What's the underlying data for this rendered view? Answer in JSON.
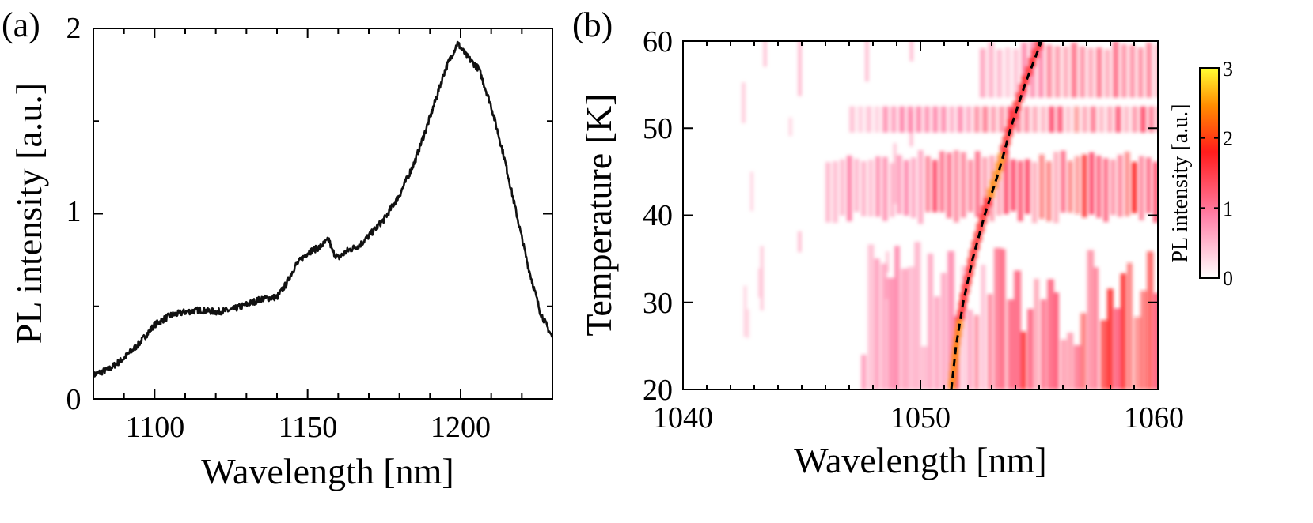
{
  "chart_data": [
    {
      "type": "line",
      "panel_label": "(a)",
      "xlabel": "Wavelength [nm]",
      "ylabel": "PL intensity [a.u.]",
      "xlim": [
        1080,
        1230
      ],
      "ylim": [
        0,
        2
      ],
      "xticks": [
        1100,
        1150,
        1200
      ],
      "xtick_labels": [
        "1100",
        "1150",
        "1200"
      ],
      "yticks": [
        0,
        1,
        2
      ],
      "ytick_labels": [
        "0",
        "1",
        "2"
      ],
      "grid": false,
      "series": [
        {
          "name": "PL spectrum",
          "color": "#111111",
          "x": [
            1080,
            1085,
            1090,
            1095,
            1100,
            1105,
            1110,
            1115,
            1120,
            1125,
            1130,
            1135,
            1140,
            1143,
            1146,
            1150,
            1154,
            1157,
            1158,
            1160,
            1163,
            1167,
            1170,
            1175,
            1180,
            1185,
            1190,
            1195,
            1199,
            1202,
            1206,
            1210,
            1214,
            1218,
            1222,
            1226,
            1230
          ],
          "y": [
            0.13,
            0.16,
            0.22,
            0.3,
            0.4,
            0.45,
            0.47,
            0.48,
            0.47,
            0.48,
            0.51,
            0.54,
            0.55,
            0.62,
            0.72,
            0.79,
            0.82,
            0.86,
            0.8,
            0.76,
            0.8,
            0.83,
            0.88,
            0.97,
            1.1,
            1.28,
            1.52,
            1.78,
            1.92,
            1.85,
            1.78,
            1.58,
            1.32,
            1.02,
            0.72,
            0.47,
            0.33
          ]
        }
      ]
    },
    {
      "type": "heatmap",
      "panel_label": "(b)",
      "xlabel": "Wavelength [nm]",
      "ylabel": "Temperature [K]",
      "xlim": [
        1040,
        1060
      ],
      "ylim": [
        20,
        60
      ],
      "xticks": [
        1040,
        1050,
        1060
      ],
      "xtick_labels": [
        "1040",
        "1050",
        "1060"
      ],
      "yticks": [
        20,
        30,
        40,
        50,
        60
      ],
      "ytick_labels": [
        "20",
        "30",
        "40",
        "50",
        "60"
      ],
      "colorbar": {
        "label": "PL intensity [a.u.]",
        "range": [
          0,
          3
        ],
        "ticks": [
          0,
          1,
          2,
          3
        ],
        "tick_labels": [
          "0",
          "1",
          "2",
          "3"
        ],
        "colors": [
          "#ffffff",
          "#ff7fa6",
          "#ff1c1c",
          "#ff8c00",
          "#ffff33"
        ]
      },
      "fit_curve": {
        "style": "dashed",
        "color": "#000000",
        "x": [
          1051.3,
          1051.5,
          1051.8,
          1052.2,
          1052.7,
          1053.3,
          1053.8,
          1054.4,
          1055.1
        ],
        "y": [
          20,
          25,
          30,
          35,
          40,
          45,
          50,
          55,
          60
        ]
      },
      "features": [
        {
          "label": "bright band near 43 K",
          "temperature": [
            39,
            48
          ],
          "wavelength": [
            1046,
            1060
          ],
          "intensity": 1.8
        },
        {
          "label": "band near 51 K",
          "temperature": [
            49,
            53
          ],
          "wavelength": [
            1052,
            1060
          ],
          "intensity": 1.3
        },
        {
          "label": "emission along fit line",
          "temperature": [
            20,
            60
          ],
          "intensity": 2.2
        },
        {
          "label": "broad emission at long wavelength, low temperature",
          "temperature": [
            20,
            38
          ],
          "wavelength": [
            1053,
            1060
          ],
          "intensity": 1.3
        }
      ]
    }
  ]
}
